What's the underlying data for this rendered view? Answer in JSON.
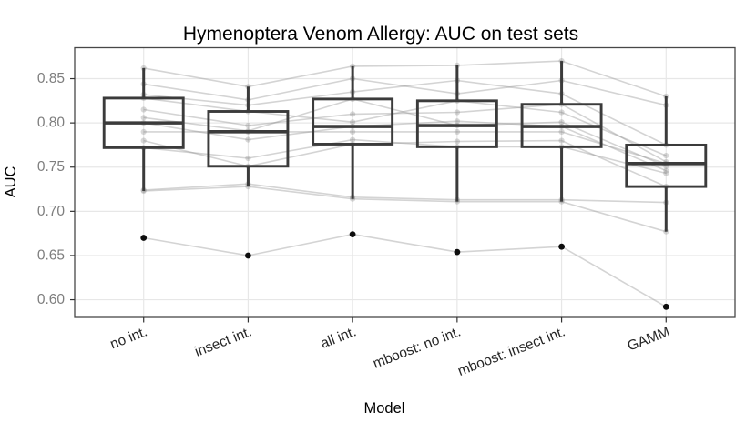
{
  "title": "Hymenoptera Venom Allergy: AUC on test sets",
  "chart_data": {
    "type": "boxplot",
    "title": "Hymenoptera Venom Allergy: AUC on test sets",
    "xlabel": "Model",
    "ylabel": "AUC",
    "categories": [
      "no int.",
      "insect int.",
      "all int.",
      "mboost: no int.",
      "mboost: insect int.",
      "GAMM"
    ],
    "y_ticks": [
      0.85,
      0.8,
      0.75,
      0.7,
      0.65,
      0.6
    ],
    "y_tick_labels": [
      "0.85",
      "0.80",
      "0.75",
      "0.70",
      "0.65",
      "0.60"
    ],
    "ylim": [
      0.58,
      0.885
    ],
    "grid": true,
    "legend": "none",
    "x_tick_angle_deg": 21,
    "boxes": [
      {
        "model": "no int.",
        "whisker_low": 0.723,
        "q1": 0.772,
        "median": 0.8,
        "q3": 0.828,
        "whisker_high": 0.862,
        "outliers": [
          0.67
        ]
      },
      {
        "model": "insect int.",
        "whisker_low": 0.728,
        "q1": 0.751,
        "median": 0.79,
        "q3": 0.813,
        "whisker_high": 0.841,
        "outliers": [
          0.65
        ]
      },
      {
        "model": "all int.",
        "whisker_low": 0.714,
        "q1": 0.776,
        "median": 0.796,
        "q3": 0.827,
        "whisker_high": 0.864,
        "outliers": [
          0.674
        ]
      },
      {
        "model": "mboost: no int.",
        "whisker_low": 0.711,
        "q1": 0.773,
        "median": 0.797,
        "q3": 0.825,
        "whisker_high": 0.865,
        "outliers": [
          0.654
        ]
      },
      {
        "model": "mboost: insect int.",
        "whisker_low": 0.711,
        "q1": 0.773,
        "median": 0.796,
        "q3": 0.821,
        "whisker_high": 0.87,
        "outliers": [
          0.66
        ]
      },
      {
        "model": "GAMM",
        "whisker_low": 0.677,
        "q1": 0.728,
        "median": 0.754,
        "q3": 0.775,
        "whisker_high": 0.83,
        "outliers": [
          0.592
        ]
      }
    ],
    "paired_series": [
      [
        0.67,
        0.65,
        0.674,
        0.654,
        0.66,
        0.592
      ],
      [
        0.723,
        0.728,
        0.714,
        0.711,
        0.711,
        0.677
      ],
      [
        0.724,
        0.731,
        0.716,
        0.713,
        0.713,
        0.71
      ],
      [
        0.772,
        0.76,
        0.781,
        0.773,
        0.773,
        0.743
      ],
      [
        0.78,
        0.751,
        0.776,
        0.779,
        0.78,
        0.728
      ],
      [
        0.79,
        0.79,
        0.79,
        0.79,
        0.79,
        0.754
      ],
      [
        0.8,
        0.781,
        0.796,
        0.802,
        0.796,
        0.746
      ],
      [
        0.806,
        0.791,
        0.827,
        0.797,
        0.801,
        0.751
      ],
      [
        0.815,
        0.797,
        0.81,
        0.812,
        0.821,
        0.756
      ],
      [
        0.828,
        0.813,
        0.801,
        0.825,
        0.812,
        0.763
      ],
      [
        0.832,
        0.82,
        0.835,
        0.848,
        0.833,
        0.775
      ],
      [
        0.844,
        0.826,
        0.85,
        0.833,
        0.848,
        0.82
      ],
      [
        0.862,
        0.841,
        0.864,
        0.865,
        0.87,
        0.83
      ]
    ],
    "colors": {
      "background": "#ffffff",
      "panel_background": "#ffffff",
      "grid": "#e7e7e7",
      "panel_border": "#474747",
      "box_stroke": "#3b3b3b",
      "pair_line": "#8f8f8f",
      "pair_point": "#7d7d7d",
      "outlier_point": "#0d0d0d",
      "tick_mark": "#333333",
      "y_tick_text": "#7e7e7e",
      "x_tick_text": "#262626",
      "title_text": "#000000"
    }
  }
}
